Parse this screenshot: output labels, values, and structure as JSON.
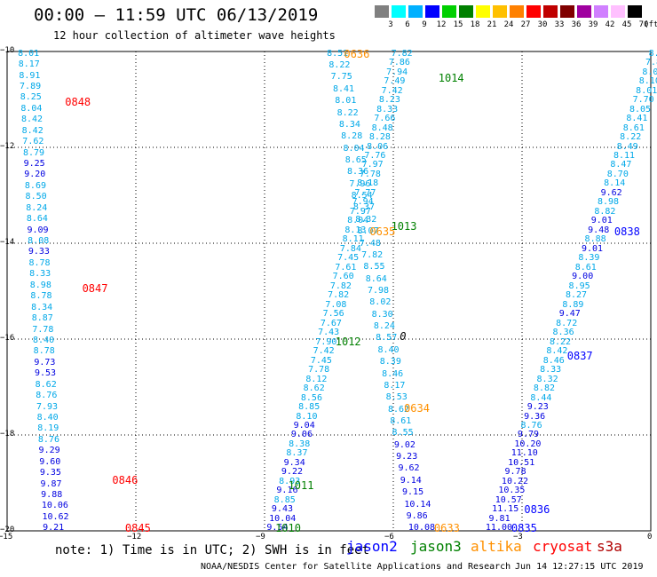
{
  "header": {
    "title": "00:00 – 11:59 UTC 06/13/2019",
    "subtitle": "12 hour collection of altimeter wave heights"
  },
  "colorbar": {
    "unit_label": "(ft)",
    "colors": [
      "#808080",
      "#00ffff",
      "#00b0ff",
      "#0000ff",
      "#00d000",
      "#008000",
      "#ffff00",
      "#ffc000",
      "#ff8000",
      "#ff0000",
      "#c00000",
      "#800000",
      "#a000a0",
      "#d080ff",
      "#ffc0ff",
      "#000000"
    ],
    "labels": [
      "3",
      "6",
      "9",
      "12",
      "15",
      "18",
      "21",
      "24",
      "27",
      "30",
      "33",
      "36",
      "39",
      "42",
      "45",
      "70"
    ]
  },
  "axes": {
    "x_ticks": [
      "−15",
      "−12",
      "−9",
      "−6",
      "−3",
      "0"
    ],
    "y_ticks": [
      "−10",
      "−12",
      "−14",
      "−16",
      "−18",
      "−20"
    ],
    "x_range": [
      -15,
      0
    ],
    "y_range": [
      -20,
      -10
    ]
  },
  "zero_contour_label": "0",
  "tracks": [
    {
      "lon0": -14.75,
      "lat0": -10.05,
      "lon1": -14.17,
      "lat1": -19.95,
      "color": "#00a8e8",
      "values": [
        "8.01",
        "8.17",
        "8.91",
        "7.89",
        "8.25",
        "8.04",
        "8.42",
        "8.42",
        "7.62",
        "8.79",
        "9.25",
        "9.20",
        "8.69",
        "8.50",
        "8.24",
        "8.64",
        "9.09",
        "8.08",
        "9.33",
        "8.78",
        "8.33",
        "8.98",
        "8.78",
        "8.34",
        "8.87",
        "7.78",
        "8.40",
        "8.78",
        "9.73",
        "9.53",
        "8.62",
        "8.76",
        "7.93",
        "8.40",
        "8.19",
        "8.76",
        "9.29",
        "9.60",
        "9.35",
        "9.87",
        "9.88",
        "10.06",
        "10.62",
        "9.21"
      ]
    },
    {
      "lon0": -8.95,
      "lat0": -19.95,
      "lon1": -6.05,
      "lat1": -10.05,
      "color": "#00a8e8",
      "values": [
        "9.54",
        "10.04",
        "9.43",
        "8.85",
        "9.16",
        "8.93",
        "9.22",
        "9.34",
        "8.37",
        "8.38",
        "9.06",
        "9.04",
        "8.10",
        "8.85",
        "8.56",
        "8.62",
        "8.12",
        "7.78",
        "7.45",
        "7.42",
        "7.90",
        "7.43",
        "7.67",
        "7.56",
        "7.08",
        "7.82",
        "7.82",
        "7.60",
        "7.61",
        "7.45",
        "7.84",
        "8.11",
        "8.13",
        "8.04",
        "7.97",
        "7.94",
        "7.77",
        "8.18",
        "7.78",
        "7.97",
        "7.76",
        "8.06",
        "8.28",
        "8.48",
        "7.66",
        "8.33",
        "8.23",
        "7.42",
        "7.49",
        "7.94",
        "7.86",
        "7.82"
      ]
    },
    {
      "lon0": -7.55,
      "lat0": -10.05,
      "lon1": -5.65,
      "lat1": -19.95,
      "color": "#00a8e8",
      "values": [
        "8.51",
        "8.22",
        "7.75",
        "8.41",
        "8.01",
        "8.22",
        "8.34",
        "8.28",
        "8.04",
        "8.65",
        "8.36",
        "7.96",
        "8.54",
        "8.37",
        "8.32",
        "8.07",
        "7.48",
        "7.82",
        "8.55",
        "8.64",
        "7.98",
        "8.02",
        "8.30",
        "8.24",
        "8.57",
        "8.40",
        "8.39",
        "8.46",
        "8.17",
        "8.53",
        "8.62",
        "8.61",
        "8.55",
        "9.02",
        "9.23",
        "9.62",
        "9.14",
        "9.15",
        "10.14",
        "9.86",
        "10.08"
      ]
    },
    {
      "lon0": -0.05,
      "lat0": -10.05,
      "lon1": -3.85,
      "lat1": -19.95,
      "color": "#00a8e8",
      "values": [
        "8.4",
        "7.81",
        "8.09",
        "8.10",
        "8.01",
        "7.70",
        "8.05",
        "8.41",
        "8.61",
        "8.22",
        "8.49",
        "8.11",
        "8.47",
        "8.70",
        "8.14",
        "9.62",
        "8.98",
        "8.82",
        "9.01",
        "9.48",
        "8.88",
        "9.01",
        "8.39",
        "8.61",
        "9.00",
        "8.95",
        "8.27",
        "8.89",
        "9.47",
        "8.72",
        "8.36",
        "8.22",
        "8.42",
        "8.46",
        "8.33",
        "8.32",
        "8.82",
        "8.44",
        "9.23",
        "9.36",
        "8.76",
        "9.79",
        "10.20",
        "11.10",
        "10.51",
        "9.78",
        "10.22",
        "10.35",
        "10.57",
        "11.15",
        "9.81",
        "11.00"
      ]
    }
  ],
  "passes": [
    {
      "label": "0848",
      "lon": -13.65,
      "lat": -11.05,
      "color": "#ff0000"
    },
    {
      "label": "0847",
      "lon": -13.25,
      "lat": -14.95,
      "color": "#ff0000"
    },
    {
      "label": "0846",
      "lon": -12.55,
      "lat": -18.95,
      "color": "#ff0000"
    },
    {
      "label": "0845",
      "lon": -12.25,
      "lat": -19.95,
      "color": "#ff0000"
    },
    {
      "label": "0636",
      "lon": -7.15,
      "lat": -10.05,
      "color": "#ff9000"
    },
    {
      "label": "0635",
      "lon": -6.55,
      "lat": -13.75,
      "color": "#ff9000"
    },
    {
      "label": "0634",
      "lon": -5.75,
      "lat": -17.45,
      "color": "#ff9000"
    },
    {
      "label": "0633",
      "lon": -5.05,
      "lat": -19.95,
      "color": "#ff9000"
    },
    {
      "label": "1014",
      "lon": -4.95,
      "lat": -10.55,
      "color": "#008000"
    },
    {
      "label": "1013",
      "lon": -6.05,
      "lat": -13.65,
      "color": "#008000"
    },
    {
      "label": "1012",
      "lon": -7.35,
      "lat": -16.05,
      "color": "#008000"
    },
    {
      "label": "1011",
      "lon": -8.45,
      "lat": -19.05,
      "color": "#008000"
    },
    {
      "label": "1010",
      "lon": -8.75,
      "lat": -19.95,
      "color": "#008000"
    },
    {
      "label": "0838",
      "lon": -0.85,
      "lat": -13.75,
      "color": "#0000ff"
    },
    {
      "label": "0837",
      "lon": -1.95,
      "lat": -16.35,
      "color": "#0000ff"
    },
    {
      "label": "0836",
      "lon": -2.95,
      "lat": -19.55,
      "color": "#0000ff"
    },
    {
      "label": "0835",
      "lon": -3.25,
      "lat": -19.95,
      "color": "#0000ff"
    }
  ],
  "footer": {
    "note": "note:  1) Time is in UTC;  2) SWH is in feet",
    "satellites": [
      {
        "name": "jason2",
        "color": "#0000ff"
      },
      {
        "name": "jason3",
        "color": "#008000"
      },
      {
        "name": "altika",
        "color": "#ff9000"
      },
      {
        "name": "cryosat",
        "color": "#ff0000"
      },
      {
        "name": "s3a",
        "color": "#b00000"
      }
    ],
    "credit": "NOAA/NESDIS Center for Satellite Applications and Research",
    "timestamp": "Jun 14 12:27:15 UTC 2019"
  }
}
